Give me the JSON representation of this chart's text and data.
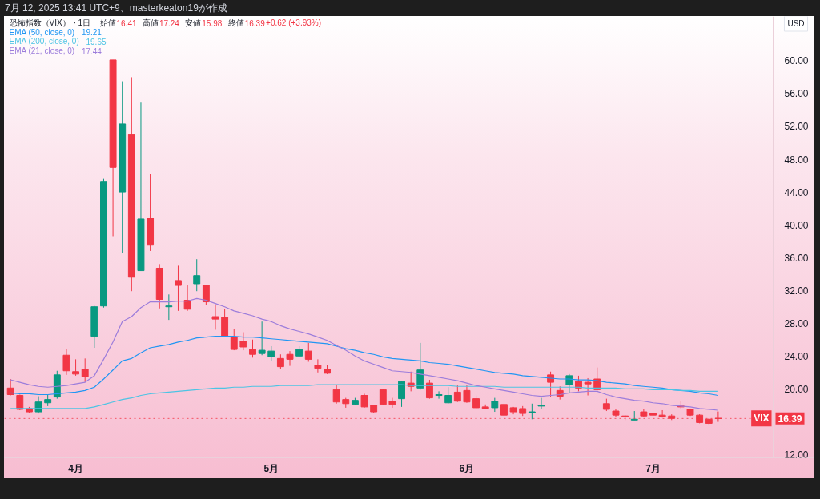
{
  "chart_data": {
    "type": "candlestick",
    "title": "恐怖指数（VIX）・1日",
    "annotations": [
      "7月 12, 2025 13:41 UTC+9、masterkeaton19が作成",
      "USD",
      "始値",
      "16.41",
      "高値",
      "17.24",
      "安値",
      "15.98",
      "終値",
      "16.39",
      "+0.62 (+3.93%)",
      "19.21",
      "19.65",
      "17.44"
    ],
    "categories": [
      null,
      null,
      null,
      null,
      null,
      null,
      null,
      "4月",
      null,
      null,
      null,
      null,
      null,
      null,
      null,
      null,
      null,
      null,
      null,
      null,
      null,
      null,
      null,
      null,
      null,
      null,
      null,
      null,
      "5月",
      null,
      null,
      null,
      null,
      null,
      null,
      null,
      null,
      null,
      null,
      null,
      null,
      null,
      null,
      null,
      null,
      null,
      null,
      null,
      null,
      "6月",
      null,
      null,
      null,
      null,
      null,
      null,
      null,
      null,
      null,
      null,
      null,
      null,
      null,
      null,
      null,
      null,
      null,
      null,
      null,
      "7月",
      null,
      null,
      null,
      null,
      null,
      null,
      null
    ],
    "ohlc": [
      [
        20.1,
        21.2,
        19.2,
        19.3
      ],
      [
        19.2,
        19.3,
        17.4,
        17.5
      ],
      [
        17.6,
        17.8,
        17.1,
        17.2
      ],
      [
        17.2,
        19.1,
        17.0,
        18.4
      ],
      [
        18.3,
        19.3,
        17.9,
        18.7
      ],
      [
        19.0,
        22.2,
        18.8,
        21.7
      ],
      [
        24.1,
        24.9,
        21.7,
        22.2
      ],
      [
        22.1,
        23.6,
        21.6,
        21.8
      ],
      [
        22.4,
        23.7,
        20.8,
        21.5
      ],
      [
        26.4,
        30.1,
        25.0,
        30.0
      ],
      [
        30.1,
        45.6,
        29.9,
        45.3
      ],
      [
        60.1,
        60.1,
        38.6,
        47.0
      ],
      [
        44.0,
        57.5,
        36.5,
        52.3
      ],
      [
        51.0,
        58.0,
        31.9,
        33.6
      ],
      [
        34.4,
        54.9,
        34.4,
        40.7
      ],
      [
        40.8,
        46.2,
        36.8,
        37.6
      ],
      [
        34.7,
        35.2,
        29.8,
        30.9
      ],
      [
        30.0,
        31.5,
        28.4,
        30.1
      ],
      [
        33.2,
        35.0,
        29.5,
        32.6
      ],
      [
        30.8,
        32.6,
        29.5,
        29.7
      ],
      [
        32.8,
        35.8,
        31.9,
        33.8
      ],
      [
        32.6,
        32.7,
        30.2,
        30.6
      ],
      [
        28.8,
        30.3,
        27.2,
        28.5
      ],
      [
        28.7,
        29.7,
        26.3,
        26.4
      ],
      [
        26.3,
        27.3,
        24.7,
        24.8
      ],
      [
        25.8,
        26.9,
        24.7,
        25.1
      ],
      [
        24.8,
        26.0,
        23.8,
        24.2
      ],
      [
        24.3,
        28.2,
        24.1,
        24.7
      ],
      [
        23.9,
        25.2,
        23.4,
        24.6
      ],
      [
        23.7,
        24.2,
        22.4,
        22.7
      ],
      [
        24.2,
        24.6,
        22.8,
        23.6
      ],
      [
        24.0,
        25.2,
        23.9,
        24.8
      ],
      [
        24.6,
        25.6,
        23.3,
        23.6
      ],
      [
        22.9,
        23.6,
        22.0,
        22.5
      ],
      [
        22.4,
        22.9,
        21.8,
        21.9
      ],
      [
        19.9,
        20.5,
        18.2,
        18.4
      ],
      [
        18.7,
        18.9,
        17.7,
        18.2
      ],
      [
        18.1,
        18.9,
        18.0,
        18.6
      ],
      [
        19.2,
        19.4,
        17.7,
        17.8
      ],
      [
        18.0,
        18.0,
        17.1,
        17.2
      ],
      [
        19.9,
        20.0,
        18.0,
        18.1
      ],
      [
        18.5,
        18.9,
        17.7,
        18.1
      ],
      [
        18.8,
        21.0,
        17.8,
        20.9
      ],
      [
        20.7,
        22.1,
        19.7,
        20.3
      ],
      [
        20.1,
        25.6,
        19.9,
        22.3
      ],
      [
        20.7,
        21.1,
        18.8,
        18.9
      ],
      [
        19.2,
        19.7,
        18.8,
        19.3
      ],
      [
        18.3,
        20.2,
        18.2,
        19.2
      ],
      [
        19.6,
        20.5,
        18.4,
        18.5
      ],
      [
        19.8,
        20.5,
        18.3,
        18.4
      ],
      [
        18.8,
        19.2,
        17.6,
        17.7
      ],
      [
        17.8,
        18.1,
        17.5,
        17.6
      ],
      [
        17.7,
        18.9,
        17.2,
        18.5
      ],
      [
        18.1,
        18.2,
        16.7,
        16.8
      ],
      [
        17.7,
        17.8,
        16.9,
        17.2
      ],
      [
        17.6,
        17.9,
        16.7,
        17.0
      ],
      [
        17.1,
        18.2,
        16.3,
        17.2
      ],
      [
        17.9,
        18.9,
        17.5,
        18.0
      ],
      [
        21.7,
        22.1,
        19.0,
        20.8
      ],
      [
        19.8,
        20.3,
        18.7,
        19.1
      ],
      [
        20.5,
        21.8,
        19.5,
        21.6
      ],
      [
        20.9,
        21.6,
        19.7,
        20.1
      ],
      [
        20.8,
        21.3,
        19.2,
        20.6
      ],
      [
        21.2,
        22.6,
        19.8,
        19.9
      ],
      [
        18.2,
        18.8,
        17.3,
        17.5
      ],
      [
        17.3,
        17.5,
        16.6,
        16.8
      ],
      [
        16.7,
        16.8,
        16.2,
        16.6
      ],
      [
        16.2,
        17.3,
        16.2,
        16.3
      ],
      [
        17.2,
        17.5,
        16.6,
        16.7
      ],
      [
        17.0,
        17.5,
        16.6,
        16.8
      ],
      [
        16.8,
        17.4,
        16.5,
        16.6
      ],
      [
        16.7,
        16.9,
        16.2,
        16.4
      ],
      [
        17.9,
        18.5,
        17.6,
        17.8
      ],
      [
        17.5,
        17.6,
        16.7,
        16.8
      ],
      [
        16.8,
        16.9,
        15.8,
        15.9
      ],
      [
        16.3,
        16.4,
        15.7,
        15.8
      ],
      [
        16.41,
        17.24,
        15.98,
        16.39
      ]
    ],
    "colors": [
      "#f23645",
      "#f23645",
      "#f23645",
      "#089981",
      "#089981",
      "#089981",
      "#f23645",
      "#f23645",
      "#f23645",
      "#089981",
      "#089981",
      "#f23645",
      "#089981",
      "#f23645",
      "#089981",
      "#f23645",
      "#f23645",
      "#089981",
      "#f23645",
      "#f23645",
      "#089981",
      "#f23645",
      "#f23645",
      "#f23645",
      "#f23645",
      "#f23645",
      "#f23645",
      "#089981",
      "#089981",
      "#f23645",
      "#f23645",
      "#089981",
      "#f23645",
      "#f23645",
      "#f23645",
      "#f23645",
      "#f23645",
      "#089981",
      "#f23645",
      "#f23645",
      "#f23645",
      "#f23645",
      "#089981",
      "#f23645",
      "#089981",
      "#f23645",
      "#089981",
      "#089981",
      "#f23645",
      "#f23645",
      "#f23645",
      "#f23645",
      "#089981",
      "#f23645",
      "#f23645",
      "#f23645",
      "#089981",
      "#089981",
      "#f23645",
      "#f23645",
      "#089981",
      "#f23645",
      "#f23645",
      "#f23645",
      "#f23645",
      "#f23645",
      "#f23645",
      "#089981",
      "#f23645",
      "#f23645",
      "#f23645",
      "#f23645",
      "#f23645",
      "#f23645",
      "#f23645",
      "#f23645",
      "#f23645"
    ],
    "ylim": [
      11.6,
      65.4
    ],
    "yticks": [
      {
        "value": 12,
        "label": "12.00"
      },
      {
        "value": 20,
        "label": "20.00"
      },
      {
        "value": 24,
        "label": "24.00"
      },
      {
        "value": 28,
        "label": "28.00"
      },
      {
        "value": 32,
        "label": "32.00"
      },
      {
        "value": 36,
        "label": "36.00"
      },
      {
        "value": 40,
        "label": "40.00"
      },
      {
        "value": 44,
        "label": "44.00"
      },
      {
        "value": 48,
        "label": "48.00"
      },
      {
        "value": 52,
        "label": "52.00"
      },
      {
        "value": 56,
        "label": "56.00"
      },
      {
        "value": 60,
        "label": "60.00"
      }
    ],
    "series": [
      {
        "name": "EMA (50, close, 0)",
        "type": "line",
        "color": "#2196f3",
        "values": [
          19.5,
          19.4,
          19.4,
          19.3,
          19.3,
          19.4,
          19.5,
          19.6,
          19.8,
          20.2,
          21.2,
          22.3,
          23.4,
          23.7,
          24.4,
          25.0,
          25.2,
          25.4,
          25.7,
          25.9,
          26.2,
          26.3,
          26.4,
          26.4,
          26.4,
          26.3,
          26.3,
          26.2,
          26.1,
          26.0,
          25.9,
          25.8,
          25.7,
          25.6,
          25.5,
          25.2,
          24.9,
          24.7,
          24.4,
          24.2,
          23.9,
          23.7,
          23.6,
          23.5,
          23.4,
          23.2,
          23.1,
          23.0,
          22.8,
          22.6,
          22.4,
          22.2,
          22.0,
          21.9,
          21.8,
          21.6,
          21.5,
          21.4,
          21.3,
          21.2,
          21.2,
          21.1,
          21.1,
          21.0,
          20.8,
          20.7,
          20.6,
          20.4,
          20.3,
          20.2,
          20.1,
          19.9,
          19.8,
          19.7,
          19.5,
          19.4,
          19.2
        ]
      },
      {
        "name": "EMA (200, close, 0)",
        "type": "line",
        "color": "#4cc4e4",
        "values": [
          17.6,
          17.6,
          17.6,
          17.6,
          17.6,
          17.6,
          17.6,
          17.6,
          17.6,
          17.8,
          18.1,
          18.4,
          18.7,
          18.9,
          19.2,
          19.4,
          19.5,
          19.6,
          19.7,
          19.8,
          19.9,
          20.0,
          20.1,
          20.1,
          20.2,
          20.2,
          20.3,
          20.3,
          20.3,
          20.4,
          20.4,
          20.4,
          20.4,
          20.5,
          20.5,
          20.5,
          20.5,
          20.5,
          20.5,
          20.5,
          20.5,
          20.5,
          20.5,
          20.4,
          20.4,
          20.4,
          20.4,
          20.4,
          20.3,
          20.3,
          20.3,
          20.3,
          20.3,
          20.2,
          20.2,
          20.2,
          20.2,
          20.2,
          20.2,
          20.2,
          20.2,
          20.2,
          20.1,
          20.1,
          20.1,
          20.1,
          20.0,
          20.0,
          20.0,
          19.9,
          19.9,
          19.9,
          19.8,
          19.8,
          19.7,
          19.7,
          19.7
        ]
      },
      {
        "name": "EMA (21, close, 0)",
        "type": "line",
        "color": "#9c7ddb",
        "values": [
          21.1,
          20.8,
          20.5,
          20.3,
          20.2,
          20.3,
          20.4,
          20.6,
          20.8,
          21.6,
          23.6,
          25.7,
          28.2,
          28.8,
          29.9,
          30.6,
          30.6,
          30.6,
          30.7,
          30.7,
          31.0,
          30.8,
          30.4,
          30.0,
          29.5,
          29.2,
          28.9,
          28.5,
          28.2,
          27.7,
          27.3,
          27.0,
          26.7,
          26.3,
          25.9,
          25.3,
          24.7,
          24.0,
          23.4,
          23.0,
          22.6,
          22.2,
          22.1,
          22.0,
          21.8,
          21.6,
          21.4,
          21.2,
          21.0,
          20.7,
          20.4,
          20.2,
          20.0,
          19.8,
          19.6,
          19.4,
          19.2,
          19.1,
          19.2,
          19.3,
          19.5,
          19.6,
          19.7,
          19.7,
          19.3,
          19.0,
          18.8,
          18.6,
          18.5,
          18.3,
          18.2,
          18.0,
          17.9,
          17.8,
          17.6,
          17.5,
          17.4
        ]
      }
    ],
    "ref_lines": [
      {
        "axis": "y",
        "value": 16.39,
        "label": "VIX",
        "color": "#f23645",
        "line_style": "dotted"
      }
    ],
    "legend": "top left"
  }
}
